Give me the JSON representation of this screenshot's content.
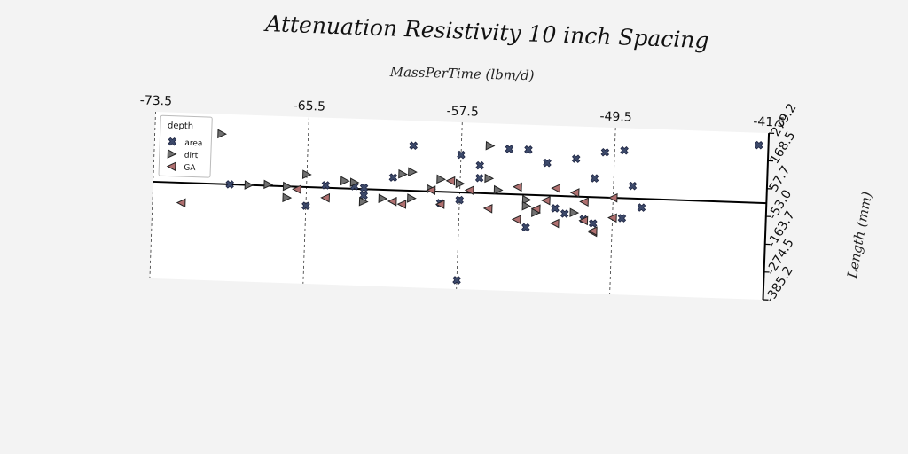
{
  "chart_data": {
    "type": "scatter",
    "title": "Attenuation Resistivity 10 inch Spacing",
    "xlabel": "MassPerTime (lbm/d)",
    "ylabel": "Length (mm)",
    "xlim": [
      -73.5,
      -41.5
    ],
    "ylim": [
      -385.2,
      279.2
    ],
    "x_ticks": [
      "-73.5",
      "-65.5",
      "-57.5",
      "-49.5",
      "-41.5"
    ],
    "y_ticks": [
      "279.2",
      "168.5",
      "57.7",
      "-53.0",
      "-163.7",
      "-274.5",
      "-385.2"
    ],
    "x_axis_position": "top",
    "y_axis_position": "right",
    "grid": "vertical dashed lines",
    "reference_line": "horizontal black line near y = 0",
    "legend": {
      "title": "depth",
      "placement": "top-left"
    },
    "series": [
      {
        "name": "area",
        "marker": "x-filled",
        "color": "#3d4a6b",
        "points": [
          [
            -69.5,
            0
          ],
          [
            -65.5,
            -75
          ],
          [
            -64.5,
            10
          ],
          [
            -63,
            10
          ],
          [
            -62.5,
            -25
          ],
          [
            -58.5,
            -45
          ],
          [
            -57.5,
            150
          ],
          [
            -57.5,
            -30
          ],
          [
            -57.5,
            -350
          ],
          [
            -56.5,
            110
          ],
          [
            -56.5,
            60
          ],
          [
            -55,
            180
          ],
          [
            -54,
            180
          ],
          [
            -54,
            -130
          ],
          [
            -53,
            130
          ],
          [
            -52.5,
            -50
          ],
          [
            -52,
            -70
          ],
          [
            -51.5,
            150
          ],
          [
            -51,
            -90
          ],
          [
            -50.5,
            -105
          ],
          [
            -50.5,
            75
          ],
          [
            -50,
            180
          ],
          [
            -49,
            190
          ],
          [
            -49,
            -80
          ],
          [
            -48.5,
            50
          ],
          [
            -48,
            -35
          ],
          [
            -42,
            230
          ],
          [
            -60,
            180
          ],
          [
            -61,
            50
          ],
          [
            -62.5,
            5
          ]
        ]
      },
      {
        "name": "dirt",
        "marker": "triangle-right",
        "color": "#707070",
        "points": [
          [
            -70,
            200
          ],
          [
            -68.5,
            0
          ],
          [
            -67.5,
            5
          ],
          [
            -66.5,
            0
          ],
          [
            -66.5,
            -45
          ],
          [
            -65.5,
            50
          ],
          [
            -63.5,
            30
          ],
          [
            -63,
            25
          ],
          [
            -62.5,
            -50
          ],
          [
            -61.5,
            -35
          ],
          [
            -60.5,
            65
          ],
          [
            -60,
            75
          ],
          [
            -59,
            10
          ],
          [
            -58.5,
            50
          ],
          [
            -57.5,
            35
          ],
          [
            -56,
            190
          ],
          [
            -54,
            -20
          ],
          [
            -53.5,
            -70
          ],
          [
            -55.5,
            15
          ],
          [
            -56,
            60
          ],
          [
            -54,
            -45
          ],
          [
            -51.5,
            -65
          ],
          [
            -60,
            -30
          ]
        ]
      },
      {
        "name": "GA",
        "marker": "triangle-left",
        "color": "#b07070",
        "points": [
          [
            -72,
            -80
          ],
          [
            -66,
            -10
          ],
          [
            -64.5,
            -40
          ],
          [
            -61,
            -45
          ],
          [
            -60.5,
            -55
          ],
          [
            -59,
            5
          ],
          [
            -58,
            45
          ],
          [
            -56,
            -60
          ],
          [
            -54.5,
            30
          ],
          [
            -54.5,
            -100
          ],
          [
            -53.5,
            -55
          ],
          [
            -52.5,
            -110
          ],
          [
            -51.5,
            15
          ],
          [
            -51,
            -95
          ],
          [
            -50.5,
            -140
          ],
          [
            -50.5,
            -135
          ],
          [
            -49.5,
            -80
          ],
          [
            -49.5,
            0
          ],
          [
            -57,
            10
          ],
          [
            -58.5,
            -50
          ],
          [
            -52.5,
            30
          ],
          [
            -53,
            -20
          ],
          [
            -51,
            -20
          ]
        ]
      }
    ]
  }
}
